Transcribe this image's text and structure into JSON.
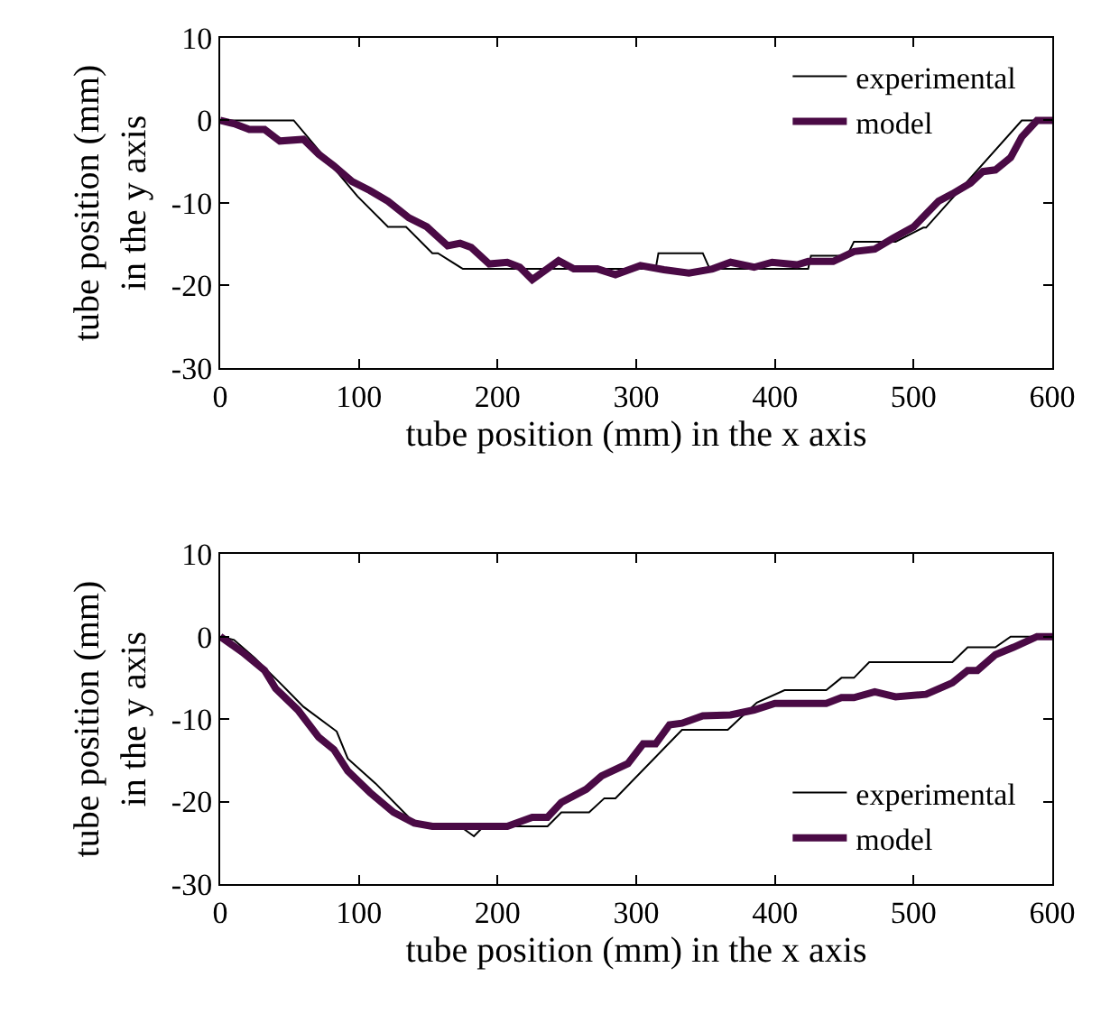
{
  "chart_data": [
    {
      "type": "line",
      "xlabel": "tube position (mm) in the x axis",
      "ylabel": "tube position (mm)\nin the y axis",
      "xlim": [
        0,
        600
      ],
      "ylim": [
        -30,
        10
      ],
      "xticks": [
        0,
        100,
        200,
        300,
        400,
        500,
        600
      ],
      "yticks": [
        -30,
        -20,
        -10,
        0,
        10
      ],
      "legend": "top right",
      "line_style": "solid",
      "series": [
        {
          "name": "experimental",
          "color": "#000000",
          "x": [
            0,
            53,
            99,
            121,
            134,
            153,
            157,
            175,
            314,
            316,
            348,
            353,
            424,
            426,
            452,
            457,
            487,
            507,
            509,
            578,
            600
          ],
          "values": [
            0,
            0,
            -9.2,
            -12.9,
            -12.9,
            -16.1,
            -16.1,
            -18,
            -18,
            -16.1,
            -16.1,
            -18,
            -18,
            -16.4,
            -16.4,
            -14.7,
            -14.7,
            -13,
            -13,
            0,
            0
          ]
        },
        {
          "name": "model",
          "color": "#4a0a45",
          "x": [
            0,
            10,
            21,
            32,
            43,
            60,
            71,
            82,
            95,
            108,
            121,
            136,
            149,
            164,
            173,
            181,
            194,
            207,
            216,
            225,
            244,
            255,
            272,
            285,
            303,
            320,
            338,
            355,
            368,
            385,
            398,
            416,
            424,
            442,
            457,
            472,
            485,
            500,
            518,
            528,
            541,
            550,
            559,
            570,
            578,
            589,
            600
          ],
          "values": [
            0,
            -0.4,
            -1.1,
            -1.1,
            -2.5,
            -2.3,
            -4.1,
            -5.5,
            -7.4,
            -8.5,
            -9.8,
            -11.8,
            -12.9,
            -15.2,
            -14.9,
            -15.4,
            -17.4,
            -17.2,
            -17.8,
            -19.3,
            -17.0,
            -18.0,
            -18.0,
            -18.7,
            -17.6,
            -18.1,
            -18.5,
            -18.0,
            -17.2,
            -17.8,
            -17.2,
            -17.5,
            -17.1,
            -17.1,
            -15.9,
            -15.6,
            -14.3,
            -12.9,
            -9.8,
            -8.9,
            -7.6,
            -6.2,
            -6.0,
            -4.5,
            -2.0,
            0,
            0
          ]
        }
      ]
    },
    {
      "type": "line",
      "xlabel": "tube position (mm) in the x axis",
      "ylabel": "tube position (mm)\nin the y axis",
      "xlim": [
        0,
        600
      ],
      "ylim": [
        -30,
        10
      ],
      "xticks": [
        0,
        100,
        200,
        300,
        400,
        500,
        600
      ],
      "yticks": [
        -30,
        -20,
        -10,
        0,
        10
      ],
      "legend": "bottom right",
      "line_style": "solid",
      "series": [
        {
          "name": "experimental",
          "color": "#000000",
          "x": [
            0,
            10,
            25,
            43,
            60,
            84,
            92,
            112,
            140,
            173,
            183,
            190,
            236,
            246,
            266,
            277,
            285,
            333,
            366,
            387,
            407,
            437,
            448,
            457,
            468,
            528,
            539,
            559,
            570,
            600
          ],
          "values": [
            0,
            -0.4,
            -2.6,
            -5.6,
            -8.5,
            -11.5,
            -14.8,
            -17.8,
            -22.6,
            -23.0,
            -24.2,
            -23.0,
            -23.0,
            -21.3,
            -21.3,
            -19.6,
            -19.6,
            -11.3,
            -11.3,
            -8.0,
            -6.5,
            -6.5,
            -5.0,
            -5.0,
            -3.1,
            -3.1,
            -1.3,
            -1.3,
            0,
            0
          ]
        },
        {
          "name": "model",
          "color": "#4a0a45",
          "x": [
            0,
            16,
            32,
            40,
            56,
            71,
            82,
            92,
            108,
            125,
            140,
            153,
            207,
            225,
            236,
            246,
            264,
            275,
            294,
            305,
            314,
            324,
            333,
            348,
            368,
            385,
            400,
            437,
            448,
            457,
            472,
            487,
            509,
            528,
            539,
            546,
            559,
            572,
            589,
            600
          ],
          "values": [
            0,
            -1.9,
            -4.1,
            -6.3,
            -8.9,
            -12.2,
            -13.7,
            -16.3,
            -18.9,
            -21.3,
            -22.6,
            -23.0,
            -23.0,
            -21.9,
            -21.9,
            -20.1,
            -18.5,
            -16.9,
            -15.4,
            -13.0,
            -13.0,
            -10.7,
            -10.5,
            -9.6,
            -9.5,
            -8.9,
            -8.1,
            -8.1,
            -7.4,
            -7.4,
            -6.7,
            -7.3,
            -7.0,
            -5.6,
            -4.1,
            -4.1,
            -2.2,
            -1.3,
            0,
            0
          ]
        }
      ]
    }
  ]
}
